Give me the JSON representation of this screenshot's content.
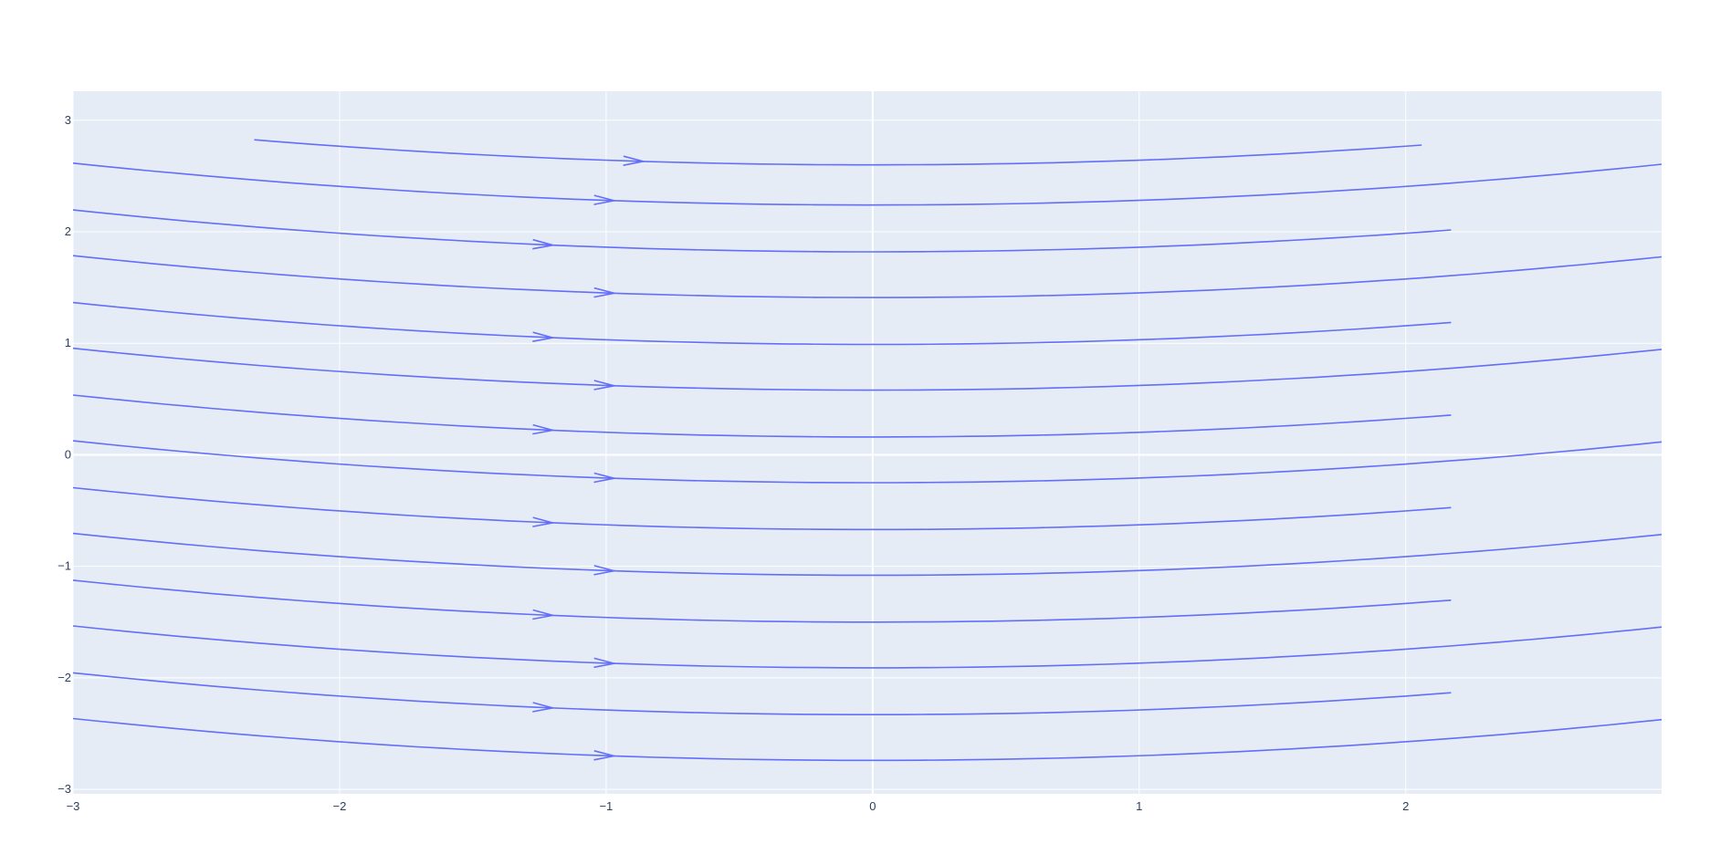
{
  "chart_data": {
    "type": "streamline",
    "title": "",
    "xlabel": "",
    "ylabel": "",
    "xlim": [
      -3,
      2.96
    ],
    "ylim": [
      -3.04,
      3.26
    ],
    "x_ticks": [
      -3,
      -2,
      -1,
      0,
      1,
      2
    ],
    "x_tick_labels": [
      "−3",
      "−2",
      "−1",
      "0",
      "1",
      "2"
    ],
    "y_ticks": [
      -3,
      -2,
      -1,
      0,
      1,
      2,
      3
    ],
    "y_tick_labels": [
      "−3",
      "−2",
      "−1",
      "0",
      "1",
      "2",
      "3"
    ],
    "grid": true,
    "colors": {
      "plot_bg": "#E5ECF6",
      "grid": "#FFFFFF",
      "line": "#636EFA",
      "tick_text": "#2A3F5F"
    },
    "streamline_shape": "y = c + 0.0417 * x^2",
    "series": [
      {
        "offset": 2.6,
        "x_range": [
          -2.32,
          2.06
        ],
        "arrow_x": -0.86
      },
      {
        "offset": 2.24,
        "x_range": [
          -3,
          2.96
        ],
        "arrow_x": -0.97
      },
      {
        "offset": 1.82,
        "x_range": [
          -3,
          2.17
        ],
        "arrow_x": -1.2
      },
      {
        "offset": 1.41,
        "x_range": [
          -3,
          2.96
        ],
        "arrow_x": -0.97
      },
      {
        "offset": 0.99,
        "x_range": [
          -3,
          2.17
        ],
        "arrow_x": -1.2
      },
      {
        "offset": 0.58,
        "x_range": [
          -3,
          2.96
        ],
        "arrow_x": -0.97
      },
      {
        "offset": 0.16,
        "x_range": [
          -3,
          2.17
        ],
        "arrow_x": -1.2
      },
      {
        "offset": -0.25,
        "x_range": [
          -3,
          2.96
        ],
        "arrow_x": -0.97
      },
      {
        "offset": -0.67,
        "x_range": [
          -3,
          2.17
        ],
        "arrow_x": -1.2
      },
      {
        "offset": -1.08,
        "x_range": [
          -3,
          2.96
        ],
        "arrow_x": -0.97
      },
      {
        "offset": -1.5,
        "x_range": [
          -3,
          2.17
        ],
        "arrow_x": -1.2
      },
      {
        "offset": -1.91,
        "x_range": [
          -3,
          2.96
        ],
        "arrow_x": -0.97
      },
      {
        "offset": -2.33,
        "x_range": [
          -3,
          2.17
        ],
        "arrow_x": -1.2
      },
      {
        "offset": -2.74,
        "x_range": [
          -3,
          2.96
        ],
        "arrow_x": -0.97
      }
    ]
  }
}
